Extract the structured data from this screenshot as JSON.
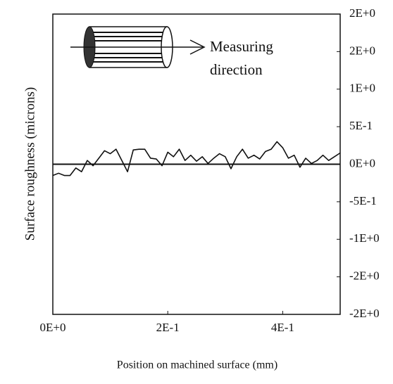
{
  "chart_data": {
    "type": "line",
    "xlabel": "Position on machined surface (mm)",
    "ylabel": "Surface roughness (microns)",
    "annotations": [
      "Measuring",
      "direction"
    ],
    "xlim": [
      0,
      0.5
    ],
    "xticks": [
      {
        "value": 0,
        "label": "0E+0"
      },
      {
        "value": 0.2,
        "label": "2E-1"
      },
      {
        "value": 0.4,
        "label": "4E-1"
      }
    ],
    "ylim": [
      -2,
      2
    ],
    "yticks": [
      {
        "value": 2,
        "label": "2E+0"
      },
      {
        "value": 1.5,
        "label": "2E+0"
      },
      {
        "value": 1,
        "label": "1E+0"
      },
      {
        "value": 0.5,
        "label": "5E-1"
      },
      {
        "value": 0,
        "label": "0E+0"
      },
      {
        "value": -0.5,
        "label": "-5E-1"
      },
      {
        "value": -1,
        "label": "-1E+0"
      },
      {
        "value": -1.5,
        "label": "-2E+0"
      },
      {
        "value": -2,
        "label": "-2E+0"
      }
    ],
    "zero_line": true,
    "series": [
      {
        "color": "#111111",
        "x": [
          0,
          0.01,
          0.02,
          0.03,
          0.04,
          0.05,
          0.06,
          0.07,
          0.08,
          0.09,
          0.1,
          0.11,
          0.12,
          0.13,
          0.14,
          0.15,
          0.16,
          0.17,
          0.18,
          0.19,
          0.2,
          0.21,
          0.22,
          0.23,
          0.24,
          0.25,
          0.26,
          0.27,
          0.28,
          0.29,
          0.3,
          0.31,
          0.32,
          0.33,
          0.34,
          0.35,
          0.36,
          0.37,
          0.38,
          0.39,
          0.4,
          0.41,
          0.42,
          0.43,
          0.44,
          0.45,
          0.46,
          0.47,
          0.48,
          0.49,
          0.5
        ],
        "values": [
          -0.15,
          -0.12,
          -0.15,
          -0.15,
          -0.05,
          -0.1,
          0.05,
          -0.02,
          0.08,
          0.18,
          0.14,
          0.2,
          0.05,
          -0.1,
          0.19,
          0.2,
          0.2,
          0.08,
          0.07,
          -0.02,
          0.16,
          0.1,
          0.2,
          0.05,
          0.12,
          0.04,
          0.1,
          0.01,
          0.08,
          0.14,
          0.1,
          -0.06,
          0.1,
          0.2,
          0.08,
          0.12,
          0.07,
          0.17,
          0.2,
          0.3,
          0.22,
          0.08,
          0.12,
          -0.04,
          0.08,
          0.01,
          0.05,
          0.12,
          0.05,
          0.1,
          0.15
        ]
      }
    ]
  }
}
